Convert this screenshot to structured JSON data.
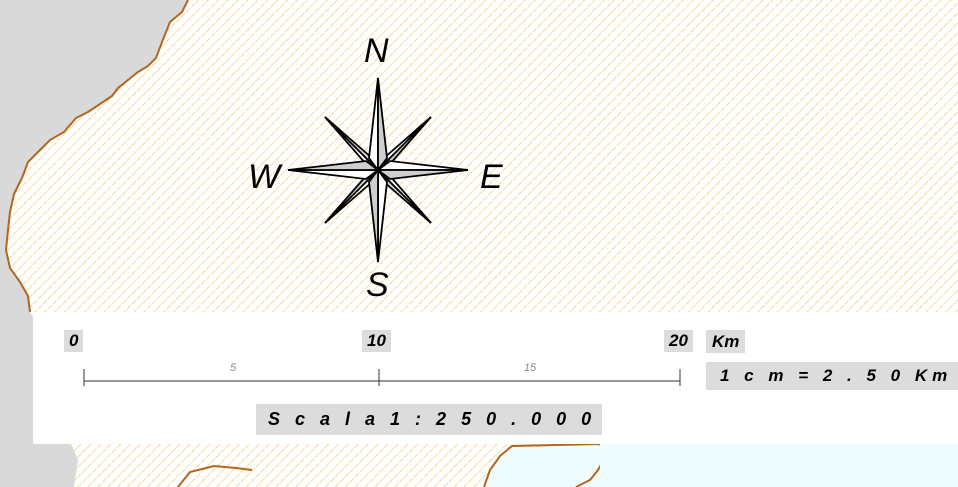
{
  "compass": {
    "north": "N",
    "south": "S",
    "east": "E",
    "west": "W"
  },
  "scale_bar": {
    "major_ticks": [
      "0",
      "10",
      "20"
    ],
    "minor_ticks": [
      "5",
      "15"
    ],
    "unit": "Km",
    "ratio_text": "1 c m  =  2 . 5 0 Km",
    "scale_text": "S c a l a  1 : 2 5 0 . 0 0 0"
  },
  "colors": {
    "land_hatch": "#f2c36b",
    "sea": "#d9d9d9",
    "coastline": "#b5651d",
    "water_area": "#eefcfd",
    "label_box": "#dcdcdc"
  }
}
